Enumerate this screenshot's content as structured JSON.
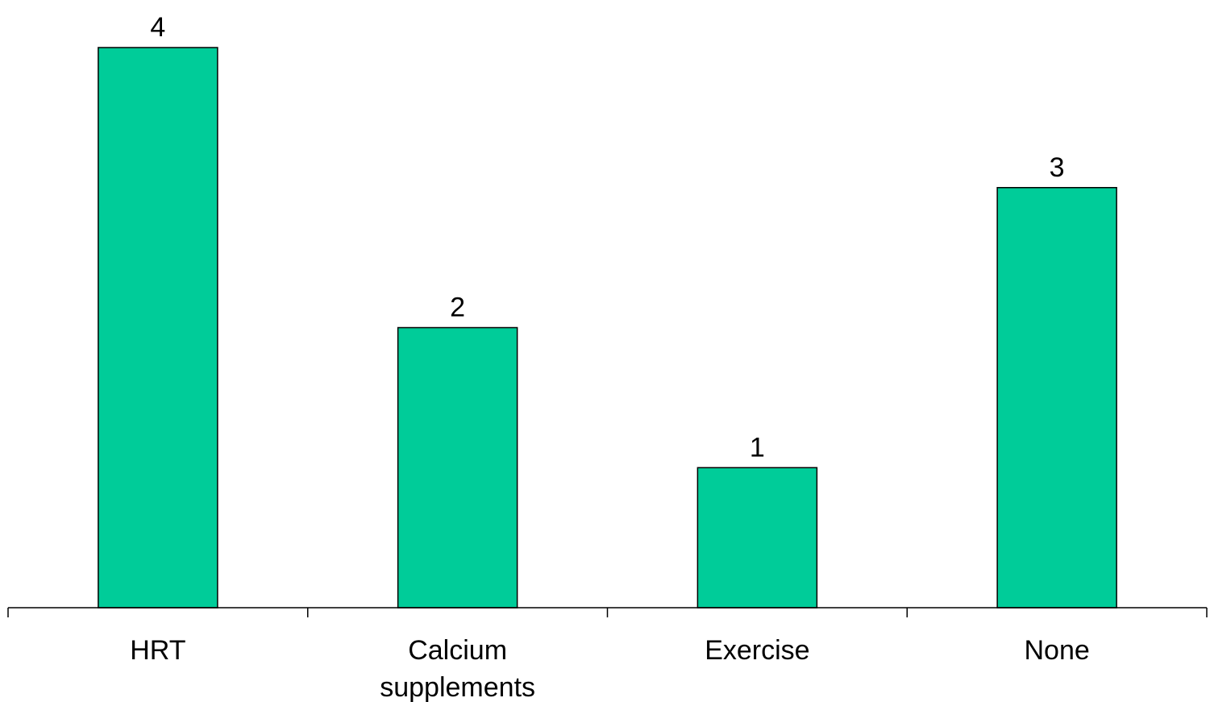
{
  "chart_data": {
    "type": "bar",
    "categories": [
      [
        "HRT"
      ],
      [
        "Calcium",
        "supplements"
      ],
      [
        "Exercise"
      ],
      [
        "None"
      ]
    ],
    "values": [
      4,
      2,
      1,
      3
    ],
    "ylim": [
      0,
      4
    ],
    "grid": false,
    "legend": "none",
    "bar_color": "#00CC99",
    "bar_stroke": "#000000",
    "axis_color": "#000000"
  }
}
